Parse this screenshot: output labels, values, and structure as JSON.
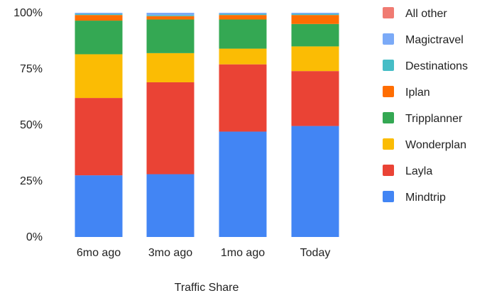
{
  "chart_data": {
    "type": "bar",
    "stacked": true,
    "normalized": true,
    "title": "",
    "xlabel": "Traffic Share",
    "ylabel": "",
    "ylim": [
      0,
      100
    ],
    "yticks": [
      "0%",
      "25%",
      "50%",
      "75%",
      "100%"
    ],
    "ytick_values": [
      0,
      25,
      50,
      75,
      100
    ],
    "categories": [
      "6mo ago",
      "3mo ago",
      "1mo ago",
      "Today"
    ],
    "grid": false,
    "legend": "right",
    "series": [
      {
        "name": "Mindtrip",
        "color": "#4285F4",
        "values": [
          27.5,
          28,
          47,
          49.5
        ]
      },
      {
        "name": "Layla",
        "color": "#EA4335",
        "values": [
          34.5,
          41,
          30,
          24.5
        ]
      },
      {
        "name": "Wonderplan",
        "color": "#FBBC04",
        "values": [
          19.5,
          13,
          7,
          11
        ]
      },
      {
        "name": "Tripplanner",
        "color": "#34A853",
        "values": [
          15,
          15,
          13,
          10
        ]
      },
      {
        "name": "Iplan",
        "color": "#FF6D01",
        "values": [
          2.5,
          1.5,
          2,
          4
        ]
      },
      {
        "name": "Destinations",
        "color": "#46BDC6",
        "values": [
          0.5,
          0.5,
          0.5,
          0.5
        ]
      },
      {
        "name": "Magictravel",
        "color": "#7BAAF7",
        "values": [
          0.5,
          1,
          0.5,
          0.5
        ]
      },
      {
        "name": "All other",
        "color": "#F07B72",
        "values": [
          0,
          0,
          0,
          0
        ]
      }
    ],
    "legend_order": [
      "All other",
      "Magictravel",
      "Destinations",
      "Iplan",
      "Tripplanner",
      "Wonderplan",
      "Layla",
      "Mindtrip"
    ]
  }
}
